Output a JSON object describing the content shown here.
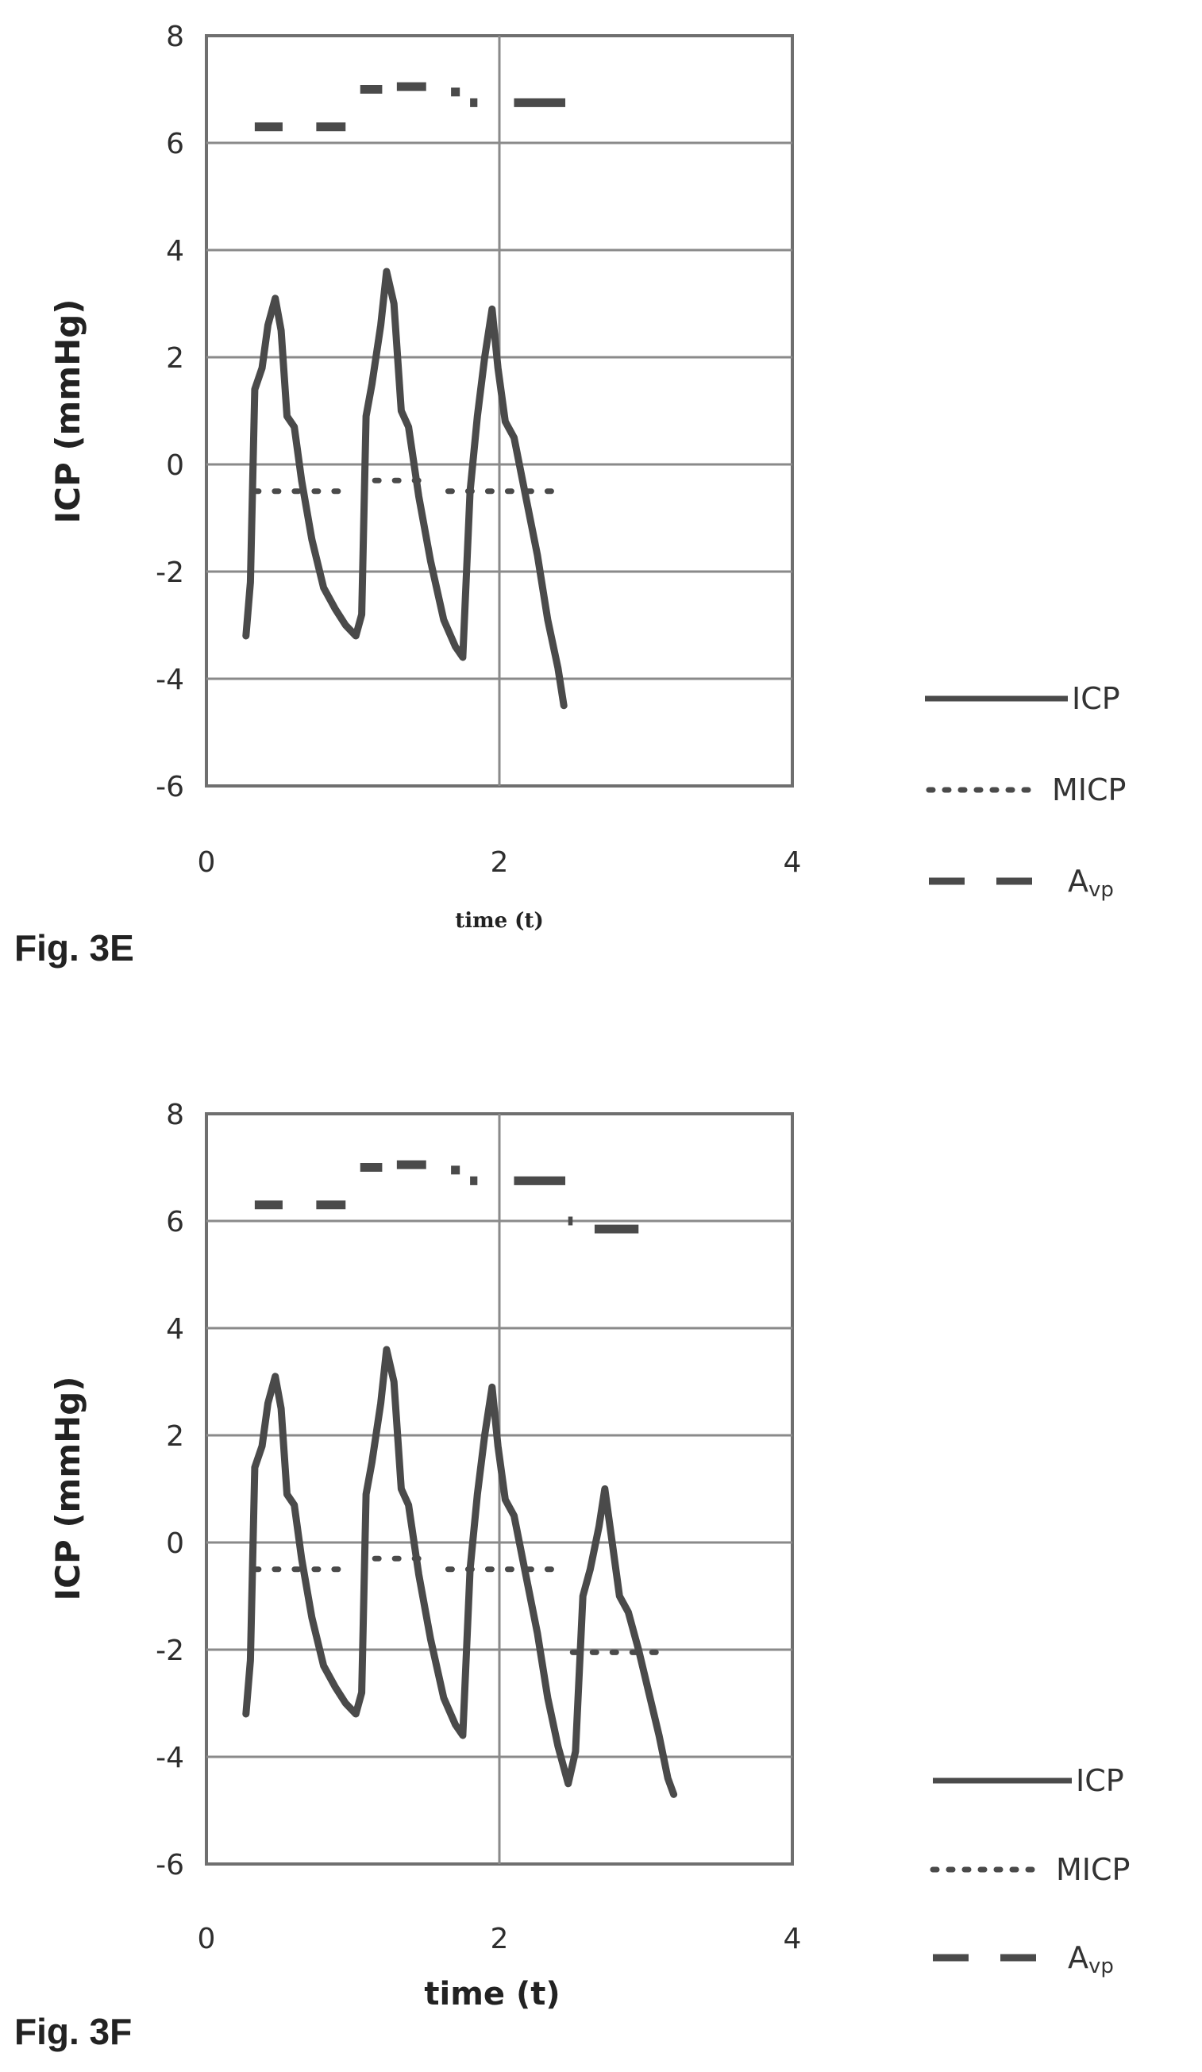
{
  "colors": {
    "ink": "#4a4a4a",
    "grid": "#8a8a8a",
    "frame": "#6f6f6f"
  },
  "chart_data": [
    {
      "type": "line",
      "figure_label": "Fig. 3E",
      "xlabel": "time (t)",
      "ylabel": "ICP (mmHg)",
      "xlim": [
        0,
        4
      ],
      "ylim": [
        -6,
        8
      ],
      "x_ticks": [
        "0",
        "2",
        "4"
      ],
      "y_ticks": [
        "8",
        "6",
        "4",
        "2",
        "0",
        "-2",
        "-4",
        "-6"
      ],
      "grid": true,
      "legend_position": "right",
      "series": [
        {
          "name": "ICP",
          "style": "solid",
          "points": [
            [
              0.27,
              -3.2
            ],
            [
              0.3,
              -2.2
            ],
            [
              0.33,
              1.4
            ],
            [
              0.38,
              1.8
            ],
            [
              0.42,
              2.6
            ],
            [
              0.47,
              3.1
            ],
            [
              0.51,
              2.5
            ],
            [
              0.55,
              0.9
            ],
            [
              0.6,
              0.7
            ],
            [
              0.65,
              -0.3
            ],
            [
              0.72,
              -1.4
            ],
            [
              0.8,
              -2.3
            ],
            [
              0.88,
              -2.7
            ],
            [
              0.95,
              -3.0
            ],
            [
              1.02,
              -3.2
            ],
            [
              1.06,
              -2.8
            ],
            [
              1.09,
              0.9
            ],
            [
              1.13,
              1.5
            ],
            [
              1.19,
              2.6
            ],
            [
              1.23,
              3.6
            ],
            [
              1.28,
              3.0
            ],
            [
              1.33,
              1.0
            ],
            [
              1.38,
              0.7
            ],
            [
              1.45,
              -0.6
            ],
            [
              1.53,
              -1.8
            ],
            [
              1.62,
              -2.9
            ],
            [
              1.7,
              -3.4
            ],
            [
              1.75,
              -3.6
            ],
            [
              1.8,
              -0.5
            ],
            [
              1.85,
              0.9
            ],
            [
              1.9,
              2.0
            ],
            [
              1.95,
              2.9
            ],
            [
              1.99,
              1.8
            ],
            [
              2.04,
              0.8
            ],
            [
              2.1,
              0.5
            ],
            [
              2.18,
              -0.6
            ],
            [
              2.26,
              -1.7
            ],
            [
              2.33,
              -2.9
            ],
            [
              2.4,
              -3.8
            ],
            [
              2.44,
              -4.5
            ]
          ]
        },
        {
          "name": "MICP",
          "style": "dotted",
          "segments": [
            [
              [
                0.33,
                -0.5
              ],
              [
                0.95,
                -0.5
              ]
            ],
            [
              [
                1.15,
                -0.3
              ],
              [
                1.5,
                -0.3
              ]
            ],
            [
              [
                1.65,
                -0.5
              ],
              [
                2.45,
                -0.5
              ]
            ]
          ]
        },
        {
          "name": "Avp",
          "style": "dashed",
          "segments": [
            [
              [
                0.33,
                6.3
              ],
              [
                0.52,
                6.3
              ]
            ],
            [
              [
                0.75,
                6.3
              ],
              [
                0.95,
                6.3
              ]
            ],
            [
              [
                1.05,
                7.0
              ],
              [
                1.2,
                7.0
              ]
            ],
            [
              [
                1.3,
                7.05
              ],
              [
                1.5,
                7.05
              ]
            ],
            [
              [
                1.67,
                6.95
              ],
              [
                1.73,
                6.95
              ]
            ],
            [
              [
                1.8,
                6.75
              ],
              [
                1.85,
                6.75
              ]
            ],
            [
              [
                2.1,
                6.75
              ],
              [
                2.45,
                6.75
              ]
            ]
          ]
        }
      ]
    },
    {
      "type": "line",
      "figure_label": "Fig. 3F",
      "xlabel": "time (t)",
      "ylabel": "ICP (mmHg)",
      "xlim": [
        0,
        4
      ],
      "ylim": [
        -6,
        8
      ],
      "x_ticks": [
        "0",
        "2",
        "4"
      ],
      "y_ticks": [
        "8",
        "6",
        "4",
        "2",
        "0",
        "-2",
        "-4",
        "-6"
      ],
      "grid": true,
      "legend_position": "right",
      "series": [
        {
          "name": "ICP",
          "style": "solid",
          "points": [
            [
              0.27,
              -3.2
            ],
            [
              0.3,
              -2.2
            ],
            [
              0.33,
              1.4
            ],
            [
              0.38,
              1.8
            ],
            [
              0.42,
              2.6
            ],
            [
              0.47,
              3.1
            ],
            [
              0.51,
              2.5
            ],
            [
              0.55,
              0.9
            ],
            [
              0.6,
              0.7
            ],
            [
              0.65,
              -0.3
            ],
            [
              0.72,
              -1.4
            ],
            [
              0.8,
              -2.3
            ],
            [
              0.88,
              -2.7
            ],
            [
              0.95,
              -3.0
            ],
            [
              1.02,
              -3.2
            ],
            [
              1.06,
              -2.8
            ],
            [
              1.09,
              0.9
            ],
            [
              1.13,
              1.5
            ],
            [
              1.19,
              2.6
            ],
            [
              1.23,
              3.6
            ],
            [
              1.28,
              3.0
            ],
            [
              1.33,
              1.0
            ],
            [
              1.38,
              0.7
            ],
            [
              1.45,
              -0.6
            ],
            [
              1.53,
              -1.8
            ],
            [
              1.62,
              -2.9
            ],
            [
              1.7,
              -3.4
            ],
            [
              1.75,
              -3.6
            ],
            [
              1.8,
              -0.5
            ],
            [
              1.85,
              0.9
            ],
            [
              1.9,
              2.0
            ],
            [
              1.95,
              2.9
            ],
            [
              1.99,
              1.8
            ],
            [
              2.04,
              0.8
            ],
            [
              2.1,
              0.5
            ],
            [
              2.18,
              -0.6
            ],
            [
              2.26,
              -1.7
            ],
            [
              2.33,
              -2.9
            ],
            [
              2.4,
              -3.8
            ],
            [
              2.47,
              -4.5
            ],
            [
              2.52,
              -3.9
            ],
            [
              2.57,
              -1.0
            ],
            [
              2.62,
              -0.5
            ],
            [
              2.68,
              0.3
            ],
            [
              2.72,
              1.0
            ],
            [
              2.77,
              0.0
            ],
            [
              2.82,
              -1.0
            ],
            [
              2.88,
              -1.3
            ],
            [
              2.95,
              -2.0
            ],
            [
              3.02,
              -2.8
            ],
            [
              3.09,
              -3.6
            ],
            [
              3.15,
              -4.4
            ],
            [
              3.19,
              -4.7
            ]
          ]
        },
        {
          "name": "MICP",
          "style": "dotted",
          "segments": [
            [
              [
                0.33,
                -0.5
              ],
              [
                0.95,
                -0.5
              ]
            ],
            [
              [
                1.15,
                -0.3
              ],
              [
                1.5,
                -0.3
              ]
            ],
            [
              [
                1.65,
                -0.5
              ],
              [
                2.45,
                -0.5
              ]
            ],
            [
              [
                2.5,
                -2.05
              ],
              [
                3.15,
                -2.05
              ]
            ]
          ]
        },
        {
          "name": "Avp",
          "style": "dashed",
          "segments": [
            [
              [
                0.33,
                6.3
              ],
              [
                0.52,
                6.3
              ]
            ],
            [
              [
                0.75,
                6.3
              ],
              [
                0.95,
                6.3
              ]
            ],
            [
              [
                1.05,
                7.0
              ],
              [
                1.2,
                7.0
              ]
            ],
            [
              [
                1.3,
                7.05
              ],
              [
                1.5,
                7.05
              ]
            ],
            [
              [
                1.67,
                6.95
              ],
              [
                1.73,
                6.95
              ]
            ],
            [
              [
                1.8,
                6.75
              ],
              [
                1.85,
                6.75
              ]
            ],
            [
              [
                2.1,
                6.75
              ],
              [
                2.45,
                6.75
              ]
            ],
            [
              [
                2.47,
                6.0
              ],
              [
                2.5,
                6.0
              ]
            ],
            [
              [
                2.65,
                5.85
              ],
              [
                2.95,
                5.85
              ]
            ]
          ]
        }
      ]
    }
  ],
  "legends": [
    {
      "items": [
        {
          "label": "ICP",
          "style": "solid"
        },
        {
          "label": "MICP",
          "style": "dotted"
        },
        {
          "label": "A",
          "sub": "vp",
          "style": "dashed"
        }
      ]
    },
    {
      "items": [
        {
          "label": "ICP",
          "style": "solid"
        },
        {
          "label": "MICP",
          "style": "dotted"
        },
        {
          "label": "A",
          "sub": "vp",
          "style": "dashed"
        }
      ]
    }
  ]
}
